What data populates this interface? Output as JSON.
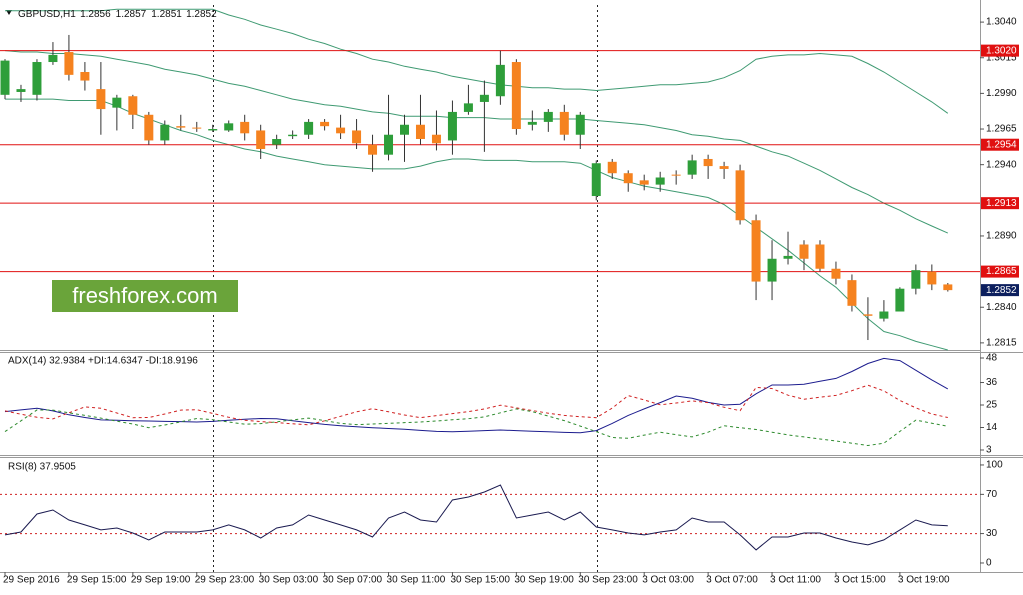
{
  "chart_data": [
    {
      "type": "candlestick",
      "title": "GBPUSD,H1",
      "header_values": [
        "1.2856",
        "1.2857",
        "1.2851",
        "1.2852"
      ],
      "categories": [
        "29 Sep 2016",
        null,
        null,
        null,
        "29 Sep 15:00",
        null,
        null,
        null,
        "29 Sep 19:00",
        null,
        null,
        null,
        "29 Sep 23:00",
        null,
        null,
        null,
        "30 Sep 03:00",
        null,
        null,
        null,
        "30 Sep 07:00",
        null,
        null,
        null,
        "30 Sep 11:00",
        null,
        null,
        null,
        "30 Sep 15:00",
        null,
        null,
        null,
        "30 Sep 19:00",
        null,
        null,
        null,
        "30 Sep 23:00",
        null,
        null,
        null,
        "3 Oct 03:00",
        null,
        null,
        null,
        "3 Oct 07:00",
        null,
        null,
        null,
        "3 Oct 11:00",
        null,
        null,
        null,
        "3 Oct 15:00",
        null,
        null,
        null,
        "3 Oct 19:00",
        null,
        null,
        null
      ],
      "open": [
        1.2989,
        1.2991,
        1.2989,
        1.3012,
        1.3019,
        1.3005,
        1.2993,
        1.298,
        1.2988,
        1.2975,
        1.2957,
        1.2967,
        1.2966,
        1.2964,
        1.2964,
        1.297,
        1.2964,
        1.2954,
        1.296,
        1.2961,
        1.297,
        1.2966,
        1.2964,
        1.2954,
        1.2947,
        1.2961,
        1.2968,
        1.2961,
        1.2957,
        1.2977,
        1.2984,
        1.2988,
        1.3012,
        1.2968,
        1.297,
        1.2977,
        1.2961,
        1.2918,
        1.2942,
        1.2934,
        1.2929,
        1.2926,
        1.2933,
        1.2933,
        1.2944,
        1.2939,
        1.2936,
        1.2901,
        1.2858,
        1.2874,
        1.2884,
        1.2884,
        1.2867,
        1.2859,
        1.2835,
        1.2832,
        1.2837,
        1.2853,
        1.2865,
        1.2856
      ],
      "high": [
        1.3014,
        1.2996,
        1.3014,
        1.3026,
        1.3031,
        1.3012,
        1.3012,
        1.2989,
        1.2989,
        1.2977,
        1.2971,
        1.2975,
        1.297,
        1.2968,
        1.2971,
        1.2975,
        1.2968,
        1.2961,
        1.2964,
        1.2972,
        1.2972,
        1.2975,
        1.2972,
        1.2961,
        1.2989,
        1.2975,
        1.2989,
        1.2978,
        1.2985,
        1.2996,
        1.2999,
        1.302,
        1.3014,
        1.2978,
        1.2979,
        1.2982,
        1.2977,
        1.2943,
        1.2944,
        1.2936,
        1.2933,
        1.2935,
        1.2936,
        1.2947,
        1.2947,
        1.2942,
        1.294,
        1.2905,
        1.2887,
        1.2893,
        1.2887,
        1.2887,
        1.2872,
        1.2863,
        1.2847,
        1.2845,
        1.2854,
        1.287,
        1.287,
        1.2857
      ],
      "low": [
        1.2986,
        1.2984,
        1.2985,
        1.301,
        1.2999,
        1.2992,
        1.2961,
        1.2964,
        1.2965,
        1.2954,
        1.2954,
        1.2964,
        1.2963,
        1.2963,
        1.2963,
        1.2957,
        1.2944,
        1.2951,
        1.2958,
        1.2958,
        1.2964,
        1.2958,
        1.2951,
        1.2935,
        1.2943,
        1.2942,
        1.2954,
        1.295,
        1.2947,
        1.2975,
        1.2949,
        1.2982,
        1.2961,
        1.2964,
        1.2963,
        1.2957,
        1.2951,
        1.2915,
        1.293,
        1.2921,
        1.2922,
        1.2921,
        1.2926,
        1.293,
        1.293,
        1.293,
        1.2898,
        1.2845,
        1.2845,
        1.287,
        1.2866,
        1.2865,
        1.2856,
        1.2837,
        1.2817,
        1.283,
        1.2837,
        1.2849,
        1.2852,
        1.2851
      ],
      "close": [
        1.3013,
        1.2993,
        1.3012,
        1.3017,
        1.3003,
        1.2999,
        1.2979,
        1.2987,
        1.2975,
        1.2957,
        1.2968,
        1.2966,
        1.2966,
        1.2965,
        1.2969,
        1.2962,
        1.2951,
        1.2958,
        1.2961,
        1.297,
        1.2967,
        1.2962,
        1.2955,
        1.2947,
        1.2961,
        1.2968,
        1.2958,
        1.2955,
        1.2977,
        1.2983,
        1.2989,
        1.301,
        1.2965,
        1.297,
        1.2977,
        1.2961,
        1.2975,
        1.2941,
        1.2934,
        1.2927,
        1.2926,
        1.2931,
        1.2933,
        1.2943,
        1.2939,
        1.2937,
        1.2901,
        1.2858,
        1.2874,
        1.2876,
        1.2874,
        1.2867,
        1.286,
        1.2841,
        1.2834,
        1.2837,
        1.2853,
        1.2866,
        1.2856,
        1.2852
      ],
      "up_color": "#2e9e3a",
      "down_color": "#f5821f",
      "wick_color": "#333333",
      "bands": [
        {
          "color": "#3f9a72",
          "values": [
            1.3048,
            1.3048,
            1.3048,
            1.3048,
            1.3048,
            1.3048,
            1.3048,
            1.3049,
            1.3049,
            1.3049,
            1.3049,
            1.3049,
            1.3049,
            1.3049,
            1.3045,
            1.3042,
            1.3038,
            1.3035,
            1.3032,
            1.3028,
            1.3025,
            1.3021,
            1.3018,
            1.3014,
            1.3012,
            1.3009,
            1.3007,
            1.3005,
            1.3002,
            1.3,
            1.2998,
            1.2996,
            1.2995,
            1.2994,
            1.2994,
            1.2993,
            1.2993,
            1.2992,
            1.2993,
            1.2994,
            1.2995,
            1.2996,
            1.2996,
            1.2997,
            1.2998,
            1.3001,
            1.3006,
            1.3014,
            1.3016,
            1.3017,
            1.3017,
            1.3018,
            1.3017,
            1.3016,
            1.3011,
            1.3005,
            1.2998,
            1.2991,
            1.2984,
            1.2976
          ]
        },
        {
          "color": "#3f9a72",
          "values": [
            1.302,
            1.3019,
            1.3019,
            1.3018,
            1.3018,
            1.3017,
            1.3016,
            1.3014,
            1.3012,
            1.301,
            1.3007,
            1.3005,
            1.3003,
            1.3,
            1.2997,
            1.2995,
            1.2992,
            1.2989,
            1.2986,
            1.2984,
            1.2982,
            1.2981,
            1.2979,
            1.2977,
            1.2976,
            1.2974,
            1.2974,
            1.2974,
            1.2973,
            1.2973,
            1.2973,
            1.2972,
            1.2972,
            1.2972,
            1.2972,
            1.2972,
            1.2972,
            1.2971,
            1.297,
            1.2969,
            1.2968,
            1.2966,
            1.2964,
            1.2961,
            1.296,
            1.2958,
            1.2957,
            1.2953,
            1.2949,
            1.2946,
            1.2941,
            1.2936,
            1.293,
            1.2924,
            1.2919,
            1.2913,
            1.2908,
            1.2902,
            1.2897,
            1.2892
          ]
        },
        {
          "color": "#3f9a72",
          "values": [
            1.2986,
            1.2986,
            1.2986,
            1.2986,
            1.2985,
            1.2985,
            1.2985,
            1.2981,
            1.2976,
            1.2972,
            1.2968,
            1.2964,
            1.2961,
            1.2957,
            1.2954,
            1.2951,
            1.2949,
            1.2946,
            1.2944,
            1.2942,
            1.294,
            1.2939,
            1.2938,
            1.2937,
            1.2937,
            1.2937,
            1.2939,
            1.2942,
            1.2944,
            1.2944,
            1.2943,
            1.2943,
            1.2943,
            1.2942,
            1.2942,
            1.2942,
            1.2941,
            1.2936,
            1.2931,
            1.2928,
            1.2925,
            1.2923,
            1.2921,
            1.2919,
            1.2917,
            1.2912,
            1.2904,
            1.2896,
            1.2888,
            1.288,
            1.2871,
            1.2862,
            1.2854,
            1.2843,
            1.2832,
            1.2823,
            1.282,
            1.2816,
            1.2813,
            1.281
          ]
        }
      ],
      "levels": [
        {
          "value": 1.302,
          "label": "1.3020"
        },
        {
          "value": 1.2954,
          "label": "1.2954"
        },
        {
          "value": 1.2913,
          "label": "1.2913"
        },
        {
          "value": 1.2865,
          "label": "1.2865"
        }
      ],
      "level_color": "#e01010",
      "current": {
        "value": 1.2852,
        "label": "1.2852"
      },
      "current_color": "#0c1f5e",
      "ylim": [
        1.281,
        1.3052
      ],
      "yticks": [
        {
          "value": 1.304,
          "label": "1.3040"
        },
        1.3015,
        {
          "value": 1.299,
          "label": "1.2990"
        },
        1.2965,
        {
          "value": 1.294,
          "label": "1.2940"
        },
        {
          "value": 1.289,
          "label": "1.2890"
        },
        {
          "value": 1.284,
          "label": "1.2840"
        },
        1.2815
      ],
      "watermark": "freshforex.com",
      "watermark_color": "#6aa43a"
    },
    {
      "type": "line",
      "title": "ADX(14) 32.9384 +DI:14.6347 -DI:18.9196",
      "series": [
        {
          "color": "#1c1c8e",
          "dashed": false,
          "values": [
            21.8,
            22.6,
            23.4,
            22.1,
            20.2,
            18.9,
            17.7,
            17.5,
            17.3,
            17.2,
            17.0,
            16.9,
            16.7,
            17.0,
            17.5,
            18.0,
            18.4,
            18.3,
            17.3,
            16.4,
            15.5,
            14.9,
            14.4,
            13.9,
            13.5,
            13.1,
            12.6,
            12.1,
            11.9,
            12.2,
            12.5,
            12.8,
            12.5,
            12.2,
            11.9,
            11.6,
            11.4,
            12.5,
            16.0,
            19.9,
            23.1,
            26.2,
            29.4,
            28.3,
            26.3,
            25.0,
            25.4,
            30.5,
            34.8,
            34.8,
            35.2,
            36.6,
            38.0,
            41.4,
            45.3,
            47.8,
            46.7,
            42.0,
            37.3,
            32.9
          ]
        },
        {
          "color": "#2e8b2e",
          "dashed": true,
          "values": [
            12.0,
            17.3,
            22.6,
            22.5,
            21.2,
            19.9,
            18.6,
            17.1,
            15.7,
            13.9,
            15.2,
            16.8,
            18.4,
            17.8,
            16.7,
            15.6,
            15.9,
            16.8,
            17.7,
            18.6,
            17.4,
            16.0,
            15.4,
            15.7,
            16.0,
            16.4,
            16.7,
            17.2,
            17.8,
            18.3,
            19.2,
            21.2,
            23.1,
            21.8,
            19.6,
            17.4,
            14.7,
            12.0,
            9.1,
            8.7,
            10.3,
            11.7,
            10.5,
            9.4,
            11.7,
            14.9,
            13.9,
            13.0,
            11.7,
            10.4,
            9.4,
            8.4,
            7.4,
            6.3,
            5.2,
            6.3,
            12.1,
            17.6,
            16.1,
            14.6
          ]
        },
        {
          "color": "#d02020",
          "dashed": true,
          "values": [
            22.1,
            20.5,
            19.0,
            18.2,
            21.2,
            24.1,
            23.4,
            21.1,
            18.8,
            18.9,
            20.6,
            22.5,
            22.7,
            20.9,
            19.0,
            17.5,
            16.9,
            16.4,
            15.8,
            15.3,
            17.3,
            19.5,
            21.7,
            23.2,
            21.7,
            20.1,
            18.8,
            19.8,
            20.8,
            21.8,
            23.1,
            24.9,
            23.6,
            22.3,
            21.0,
            19.9,
            19.3,
            18.8,
            23.5,
            29.6,
            27.5,
            25.1,
            26.0,
            27.0,
            26.2,
            23.9,
            22.2,
            33.6,
            33.1,
            29.8,
            27.8,
            28.8,
            29.7,
            32.0,
            34.7,
            31.9,
            27.2,
            23.6,
            20.6,
            18.9
          ]
        }
      ],
      "ylim": [
        0.55,
        50.93
      ],
      "yticks": [
        48,
        36,
        25,
        14,
        3
      ]
    },
    {
      "type": "line",
      "title": "RSI(8) 37.9505",
      "series": [
        {
          "color": "#1a1a50",
          "dashed": false,
          "values": [
            28.6,
            31.6,
            50.0,
            54.1,
            43.9,
            38.8,
            33.7,
            35.7,
            30.6,
            23.5,
            31.6,
            31.6,
            31.6,
            33.7,
            38.8,
            33.7,
            25.5,
            35.7,
            38.8,
            49.0,
            43.9,
            38.8,
            33.7,
            26.5,
            45.9,
            52.0,
            43.9,
            41.8,
            64.3,
            67.3,
            72.4,
            79.6,
            45.9,
            49.0,
            52.0,
            43.9,
            52.0,
            36.7,
            33.7,
            30.6,
            28.6,
            31.6,
            33.7,
            45.9,
            41.8,
            41.8,
            28.6,
            13.3,
            26.5,
            26.5,
            30.6,
            30.6,
            25.5,
            21.4,
            18.4,
            23.5,
            33.7,
            43.9,
            38.8,
            37.95
          ]
        }
      ],
      "levels": [
        70,
        30
      ],
      "level_color": "#d02020",
      "ylim": [
        -9.2,
        107.1
      ],
      "yticks": [
        100,
        70,
        30,
        0
      ]
    }
  ]
}
